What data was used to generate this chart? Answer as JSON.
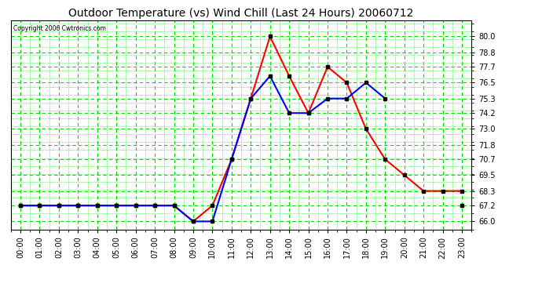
{
  "title": "Outdoor Temperature (vs) Wind Chill (Last 24 Hours) 20060712",
  "copyright": "Copyright 2006 Cwtronics.com",
  "hours": [
    "00:00",
    "01:00",
    "02:00",
    "03:00",
    "04:00",
    "05:00",
    "06:00",
    "07:00",
    "08:00",
    "09:00",
    "10:00",
    "11:00",
    "12:00",
    "13:00",
    "14:00",
    "15:00",
    "16:00",
    "17:00",
    "18:00",
    "19:00",
    "20:00",
    "21:00",
    "22:00",
    "23:00"
  ],
  "temp": [
    67.2,
    67.2,
    67.2,
    67.2,
    67.2,
    67.2,
    67.2,
    67.2,
    67.2,
    66.0,
    67.2,
    70.7,
    75.3,
    80.0,
    77.0,
    74.2,
    77.7,
    76.5,
    73.0,
    70.7,
    69.5,
    68.3,
    68.3,
    68.3
  ],
  "wind_chill": [
    67.2,
    67.2,
    67.2,
    67.2,
    67.2,
    67.2,
    67.2,
    67.2,
    67.2,
    66.0,
    66.0,
    70.7,
    75.3,
    77.0,
    74.2,
    74.2,
    75.3,
    75.3,
    76.5,
    75.3,
    null,
    null,
    null,
    67.2
  ],
  "ylim": [
    65.4,
    81.2
  ],
  "yticks": [
    66.0,
    67.2,
    68.3,
    69.5,
    70.7,
    71.8,
    73.0,
    74.2,
    75.3,
    76.5,
    77.7,
    78.8,
    80.0
  ],
  "temp_color": "#ff0000",
  "wind_chill_color": "#0000ff",
  "grid_major_color": "#00dd00",
  "grid_minor_color": "#00dd00",
  "bg_color": "#ffffff",
  "title_fontsize": 10,
  "tick_fontsize": 7,
  "marker": "s",
  "marker_size": 3,
  "marker_color": "#000000",
  "line_width": 1.5
}
